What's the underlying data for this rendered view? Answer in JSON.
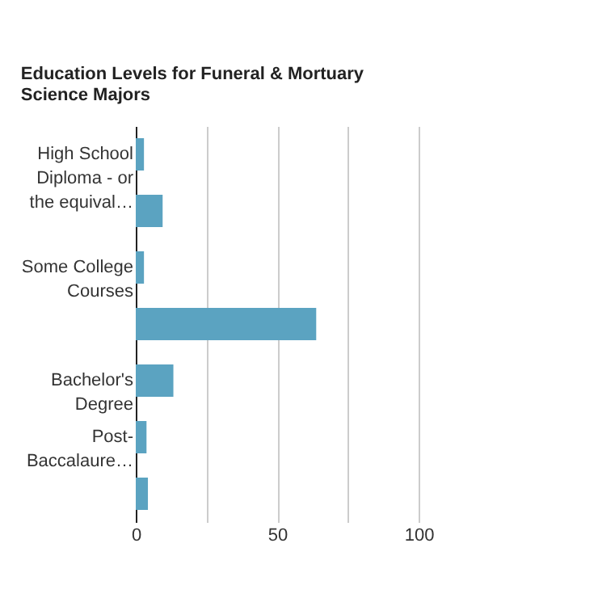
{
  "chart_data": {
    "type": "bar",
    "orientation": "horizontal",
    "title": "Education Levels for Funeral & Mortuary Science Majors",
    "categories": [
      "High School Diploma - or the equival…",
      null,
      "Some College Courses",
      null,
      "Bachelor's Degree",
      "Post-Baccalaure…",
      null
    ],
    "values": [
      2.9,
      9.5,
      2.9,
      63.8,
      13.3,
      3.8,
      4.3
    ],
    "color": "#5ba3c1",
    "xlim": [
      0,
      100
    ],
    "xticks": [
      0,
      {
        "value": 25,
        "label": null
      },
      50,
      {
        "value": 75,
        "label": null
      },
      100
    ],
    "grid": "x"
  }
}
